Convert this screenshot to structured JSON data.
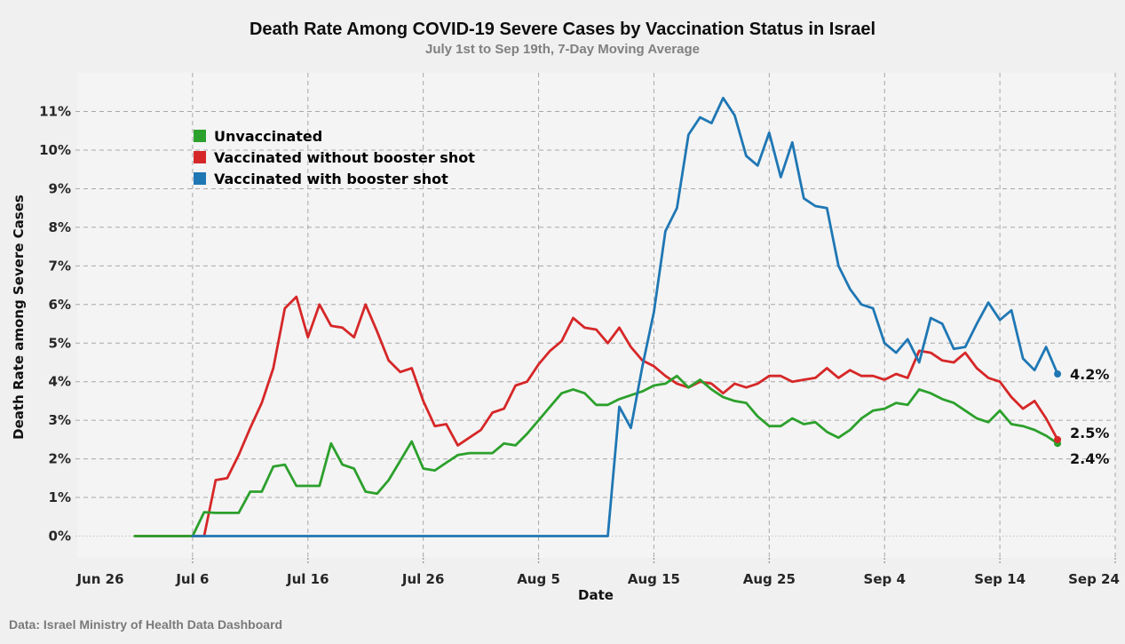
{
  "footer": {
    "source": "Data: Israel Ministry of Health Data Dashboard"
  },
  "legend": {
    "items": [
      {
        "label": "Unvaccinated",
        "color": "#2ca02c"
      },
      {
        "label": "Vaccinated without booster shot",
        "color": "#d62728"
      },
      {
        "label": "Vaccinated with booster shot",
        "color": "#1f77b4"
      }
    ]
  },
  "chart_data": {
    "type": "line",
    "title": "Death Rate Among COVID-19 Severe Cases by Vaccination Status in Israel",
    "subtitle": "July 1st to Sep 19th, 7-Day Moving Average",
    "xlabel": "Date",
    "ylabel": "Death Rate among Severe Cases",
    "ylim": [
      0,
      11.6
    ],
    "grid": true,
    "legend_position": "upper-left-inside",
    "y_ticks": [
      {
        "label": "0%",
        "value": 0
      },
      {
        "label": "1%",
        "value": 1
      },
      {
        "label": "2%",
        "value": 2
      },
      {
        "label": "3%",
        "value": 3
      },
      {
        "label": "4%",
        "value": 4
      },
      {
        "label": "5%",
        "value": 5
      },
      {
        "label": "6%",
        "value": 6
      },
      {
        "label": "7%",
        "value": 7
      },
      {
        "label": "8%",
        "value": 8
      },
      {
        "label": "9%",
        "value": 9
      },
      {
        "label": "10%",
        "value": 10
      },
      {
        "label": "11%",
        "value": 11
      }
    ],
    "x_ticks": [
      {
        "label": "Jun 26",
        "day": 0
      },
      {
        "label": "Jul 6",
        "day": 10
      },
      {
        "label": "Jul 16",
        "day": 20
      },
      {
        "label": "Jul 26",
        "day": 30
      },
      {
        "label": "Aug 5",
        "day": 40
      },
      {
        "label": "Aug 15",
        "day": 50
      },
      {
        "label": "Aug 25",
        "day": 60
      },
      {
        "label": "Sep 4",
        "day": 70
      },
      {
        "label": "Sep 14",
        "day": 80
      },
      {
        "label": "Sep 24",
        "day": 90
      }
    ],
    "series": [
      {
        "name": "Unvaccinated",
        "color": "#2ca02c",
        "start_date": "Jul 1",
        "start_day": 5,
        "end_label": "2.4%",
        "values": [
          0,
          0,
          0,
          0,
          0,
          0,
          0.62,
          0.6,
          0.6,
          0.6,
          1.15,
          1.15,
          1.8,
          1.85,
          1.3,
          1.3,
          1.3,
          2.4,
          1.85,
          1.75,
          1.15,
          1.1,
          1.45,
          1.95,
          2.45,
          1.75,
          1.7,
          1.9,
          2.1,
          2.15,
          2.15,
          2.15,
          2.4,
          2.35,
          2.65,
          3.0,
          3.35,
          3.7,
          3.8,
          3.7,
          3.4,
          3.4,
          3.55,
          3.65,
          3.75,
          3.9,
          3.95,
          4.15,
          3.85,
          4.05,
          3.8,
          3.6,
          3.5,
          3.45,
          3.1,
          2.85,
          2.85,
          3.05,
          2.9,
          2.95,
          2.7,
          2.55,
          2.75,
          3.05,
          3.25,
          3.3,
          3.45,
          3.4,
          3.8,
          3.7,
          3.55,
          3.45,
          3.25,
          3.05,
          2.95,
          3.25,
          2.9,
          2.85,
          2.75,
          2.6,
          2.4
        ]
      },
      {
        "name": "Vaccinated without booster shot",
        "color": "#d62728",
        "start_date": "Jul 1",
        "start_day": 5,
        "end_label": "2.5%",
        "values": [
          0,
          0,
          0,
          0,
          0,
          0,
          0,
          1.45,
          1.5,
          2.1,
          2.8,
          3.45,
          4.35,
          5.9,
          6.2,
          5.15,
          6.0,
          5.45,
          5.4,
          5.15,
          6.0,
          5.3,
          4.55,
          4.25,
          4.35,
          3.5,
          2.85,
          2.9,
          2.35,
          2.55,
          2.75,
          3.2,
          3.3,
          3.9,
          4.0,
          4.45,
          4.8,
          5.05,
          5.65,
          5.4,
          5.35,
          5.0,
          5.4,
          4.9,
          4.55,
          4.4,
          4.15,
          3.95,
          3.85,
          4.0,
          3.95,
          3.7,
          3.95,
          3.85,
          3.95,
          4.15,
          4.15,
          4.0,
          4.05,
          4.1,
          4.35,
          4.1,
          4.3,
          4.15,
          4.15,
          4.05,
          4.2,
          4.1,
          4.8,
          4.75,
          4.55,
          4.5,
          4.75,
          4.35,
          4.1,
          4.0,
          3.6,
          3.3,
          3.5,
          3.05,
          2.5
        ]
      },
      {
        "name": "Vaccinated with booster shot",
        "color": "#1f77b4",
        "start_date": "Jul 6",
        "start_day": 10,
        "end_label": "4.2%",
        "values": [
          0,
          0,
          0,
          0,
          0,
          0,
          0,
          0,
          0,
          0,
          0,
          0,
          0,
          0,
          0,
          0,
          0,
          0,
          0,
          0,
          0,
          0,
          0,
          0,
          0,
          0,
          0,
          0,
          0,
          0,
          0,
          0,
          0,
          0,
          0,
          0,
          0,
          3.35,
          2.8,
          4.4,
          5.8,
          7.9,
          8.5,
          10.4,
          10.85,
          10.7,
          11.35,
          10.9,
          9.85,
          9.6,
          10.45,
          9.3,
          10.2,
          8.75,
          8.55,
          8.5,
          7.0,
          6.4,
          6.0,
          5.9,
          5.0,
          4.75,
          5.1,
          4.5,
          5.65,
          5.5,
          4.85,
          4.9,
          5.5,
          6.05,
          5.6,
          5.85,
          4.6,
          4.3,
          4.9,
          4.2
        ]
      }
    ],
    "end_labels": [
      {
        "series": "Vaccinated with booster shot",
        "text": "4.2%"
      },
      {
        "series": "Vaccinated without booster shot",
        "text": "2.5%"
      },
      {
        "series": "Unvaccinated",
        "text": "2.4%"
      }
    ]
  }
}
